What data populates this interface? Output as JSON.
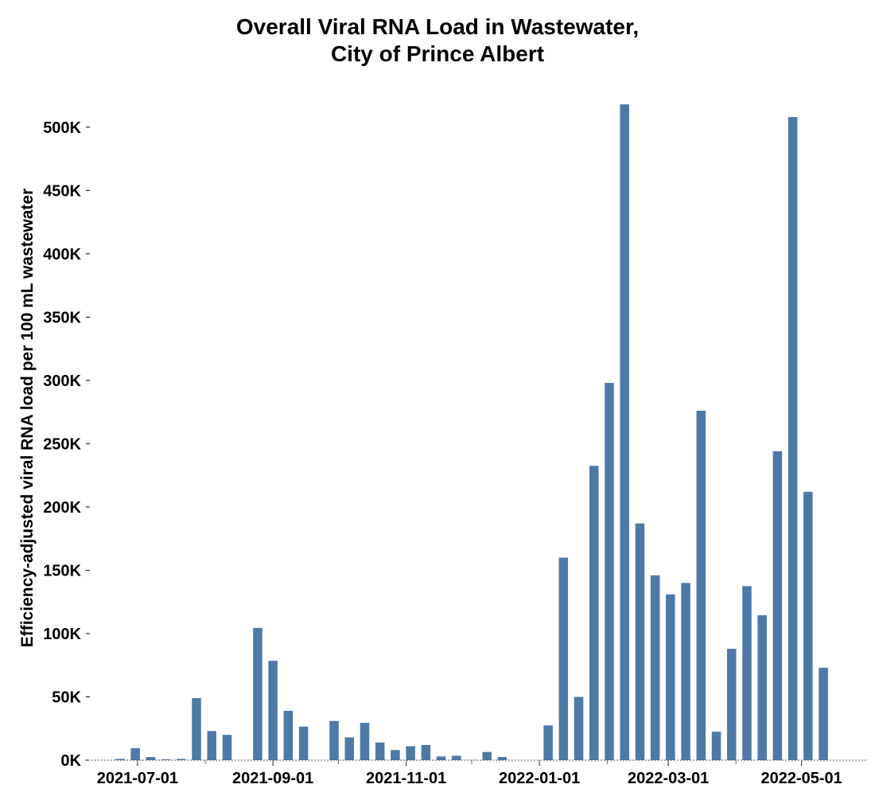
{
  "chart_data": {
    "type": "bar",
    "title": [
      "Overall Viral RNA Load in Wastewater,",
      "City of Prince Albert"
    ],
    "xlabel": "",
    "ylabel": "Efficiency-adjusted viral RNA load per 100 mL wastewater",
    "ylim": [
      0,
      525000
    ],
    "y_ticks": [
      0,
      50000,
      100000,
      150000,
      200000,
      250000,
      300000,
      350000,
      400000,
      450000,
      500000
    ],
    "y_tick_labels": [
      "0K",
      "50K",
      "100K",
      "150K",
      "200K",
      "250K",
      "300K",
      "350K",
      "400K",
      "450K",
      "500K"
    ],
    "x_ticks": [
      "2021-07-01",
      "2021-09-01",
      "2021-11-01",
      "2022-01-01",
      "2022-03-01",
      "2022-05-01"
    ],
    "x_tick_labels": [
      "2021-07-01",
      "2021-09-01",
      "2021-11-01",
      "2022-01-01",
      "2022-03-01",
      "2022-05-01"
    ],
    "x_range": [
      "2021-06-07",
      "2022-05-31"
    ],
    "bar_color": "#4e79a7",
    "grid": false,
    "legend": "none",
    "x": [
      "2021-06-16",
      "2021-06-23",
      "2021-06-30",
      "2021-07-07",
      "2021-07-14",
      "2021-07-21",
      "2021-07-28",
      "2021-08-04",
      "2021-08-11",
      "2021-08-18",
      "2021-08-25",
      "2021-09-01",
      "2021-09-08",
      "2021-09-15",
      "2021-09-22",
      "2021-09-29",
      "2021-10-06",
      "2021-10-13",
      "2021-10-20",
      "2021-10-27",
      "2021-11-03",
      "2021-11-10",
      "2021-11-17",
      "2021-11-24",
      "2021-12-01",
      "2021-12-08",
      "2021-12-15",
      "2021-12-22",
      "2021-12-29",
      "2022-01-05",
      "2022-01-12",
      "2022-01-19",
      "2022-01-26",
      "2022-02-02",
      "2022-02-09",
      "2022-02-16",
      "2022-02-23",
      "2022-03-02",
      "2022-03-09",
      "2022-03-16",
      "2022-03-23",
      "2022-03-30",
      "2022-04-06",
      "2022-04-13",
      "2022-04-20",
      "2022-04-27",
      "2022-05-04",
      "2022-05-11"
    ],
    "values": [
      0,
      1000,
      9500,
      2500,
      700,
      1000,
      49000,
      23000,
      20000,
      0,
      104500,
      78500,
      39000,
      26500,
      0,
      31000,
      18000,
      29500,
      14000,
      8000,
      11000,
      12000,
      3000,
      3500,
      200,
      6500,
      2500,
      0,
      0,
      27500,
      160000,
      50000,
      232500,
      298000,
      518000,
      187000,
      146000,
      131000,
      140000,
      276000,
      22500,
      88000,
      137500,
      114500,
      244000,
      508000,
      212000,
      73000
    ]
  }
}
